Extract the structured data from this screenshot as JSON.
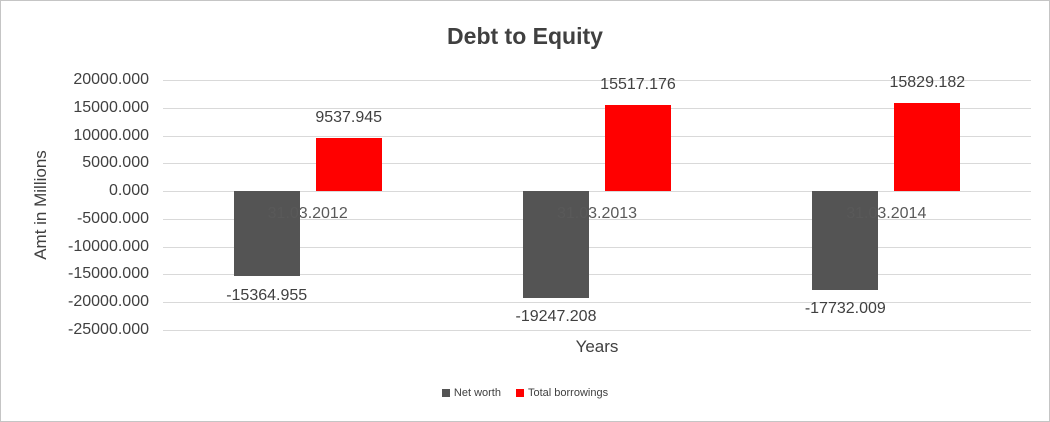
{
  "chart_data": {
    "type": "bar",
    "title": "Debt to Equity",
    "xlabel": "Years",
    "ylabel": "Amt in Millions",
    "categories": [
      "31.03.2012",
      "31.03.2013",
      "31.03.2014"
    ],
    "series": [
      {
        "name": "Net worth",
        "color": "#545454",
        "values": [
          -15364.955,
          -19247.208,
          -17732.009
        ],
        "value_labels": [
          "-15364.955",
          "-19247.208",
          "-17732.009"
        ]
      },
      {
        "name": "Total borrowings",
        "color": "#ff0000",
        "values": [
          9537.945,
          15517.176,
          15829.182
        ],
        "value_labels": [
          "9537.945",
          "15517.176",
          "15829.182"
        ]
      }
    ],
    "ylim": [
      -25000,
      20000
    ],
    "ytick_values": [
      20000,
      15000,
      10000,
      5000,
      0,
      -5000,
      -10000,
      -15000,
      -20000,
      -25000
    ],
    "ytick_labels": [
      "20000.000",
      "15000.000",
      "10000.000",
      "5000.000",
      "0.000",
      "-5000.000",
      "-10000.000",
      "-15000.000",
      "-20000.000",
      "-25000.000"
    ],
    "grid": true,
    "legend_position": "bottom",
    "colors": {
      "gridline": "#d9d9d9",
      "axis_text": "#404040",
      "category_text": "#595959",
      "title_text": "#404040"
    }
  }
}
